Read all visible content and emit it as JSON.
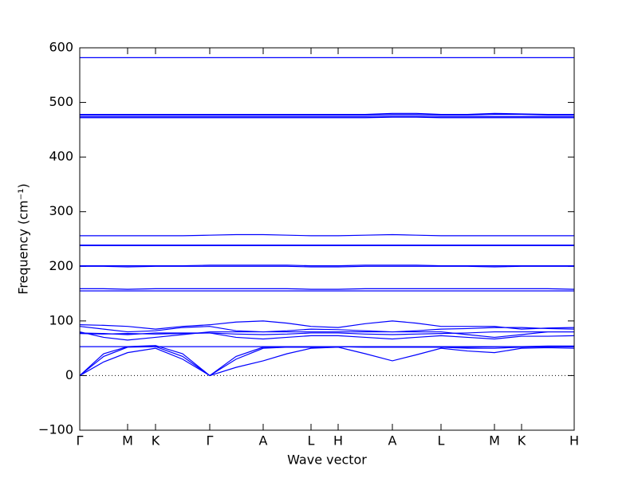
{
  "chart_data": {
    "type": "line",
    "xlabel": "Wave vector",
    "ylabel": "Frequency (cm⁻¹)",
    "xlim": [
      0,
      620
    ],
    "ylim": [
      -100,
      600
    ],
    "xticks": [
      {
        "value": 0,
        "label": "Γ"
      },
      {
        "value": 60,
        "label": "M"
      },
      {
        "value": 95,
        "label": "K"
      },
      {
        "value": 163,
        "label": "Γ"
      },
      {
        "value": 230,
        "label": "A"
      },
      {
        "value": 290,
        "label": "L"
      },
      {
        "value": 324,
        "label": "H"
      },
      {
        "value": 392,
        "label": "A"
      },
      {
        "value": 453,
        "label": "L"
      },
      {
        "value": 520,
        "label": "M"
      },
      {
        "value": 554,
        "label": "K"
      },
      {
        "value": 620,
        "label": "H"
      }
    ],
    "yticks": [
      {
        "value": -100,
        "label": "−100"
      },
      0,
      100,
      200,
      300,
      400,
      500,
      600
    ],
    "zero_line": true,
    "x": [
      0,
      30,
      60,
      95,
      129,
      163,
      196,
      230,
      260,
      290,
      324,
      358,
      392,
      422,
      453,
      486,
      520,
      554,
      587,
      620
    ],
    "series": [
      {
        "color": "#0000ff",
        "values": [
          0,
          25,
          42,
          50,
          30,
          0,
          15,
          27,
          40,
          50,
          52,
          40,
          27,
          38,
          50,
          45,
          42,
          50,
          51,
          50
        ]
      },
      {
        "color": "#0000ff",
        "values": [
          0,
          35,
          52,
          53,
          35,
          0,
          30,
          50,
          52,
          52,
          53,
          52,
          52,
          52,
          52,
          50,
          50,
          52,
          53,
          53
        ]
      },
      {
        "color": "#0000ff",
        "values": [
          0,
          40,
          53,
          55,
          40,
          0,
          35,
          52,
          52,
          52,
          53,
          52,
          52,
          52,
          52,
          52,
          53,
          53,
          54,
          54
        ]
      },
      {
        "color": "#0000ff",
        "values": [
          53,
          53,
          53,
          53,
          53,
          53,
          53,
          53,
          53,
          53,
          53,
          53,
          53,
          53,
          53,
          53,
          53,
          53,
          53,
          53
        ]
      },
      {
        "color": "#0000ff",
        "values": [
          93,
          92,
          90,
          85,
          90,
          93,
          98,
          100,
          96,
          90,
          88,
          95,
          100,
          96,
          90,
          90,
          90,
          85,
          87,
          88
        ]
      },
      {
        "color": "#0000ff",
        "values": [
          90,
          85,
          80,
          82,
          88,
          90,
          82,
          80,
          82,
          85,
          84,
          82,
          80,
          82,
          85,
          86,
          88,
          88,
          86,
          85
        ]
      },
      {
        "color": "#0000ff",
        "values": [
          80,
          70,
          65,
          70,
          75,
          80,
          80,
          80,
          80,
          80,
          80,
          80,
          80,
          80,
          80,
          75,
          70,
          75,
          80,
          80
        ]
      },
      {
        "color": "#0000ff",
        "values": [
          78,
          77,
          75,
          78,
          78,
          78,
          70,
          67,
          70,
          73,
          73,
          70,
          67,
          70,
          73,
          70,
          67,
          72,
          72,
          73
        ]
      },
      {
        "color": "#0000ff",
        "values": [
          77,
          76,
          77,
          76,
          77,
          78,
          76,
          75,
          76,
          78,
          78,
          76,
          75,
          76,
          77,
          78,
          80,
          80,
          80,
          80
        ]
      },
      {
        "color": "#0000ff",
        "values": [
          155,
          155,
          155,
          155,
          155,
          155,
          155,
          155,
          155,
          155,
          155,
          155,
          155,
          155,
          155,
          155,
          155,
          155,
          155,
          155
        ]
      },
      {
        "color": "#0000ff",
        "values": [
          159,
          159,
          158,
          159,
          159,
          159,
          159,
          159,
          159,
          158,
          158,
          159,
          159,
          159,
          159,
          159,
          159,
          159,
          159,
          158
        ]
      },
      {
        "color": "#0000ff",
        "values": [
          200,
          200,
          199,
          200,
          200,
          200,
          200,
          200,
          200,
          199,
          199,
          200,
          200,
          200,
          200,
          200,
          199,
          200,
          200,
          200
        ]
      },
      {
        "color": "#0000ff",
        "values": [
          201,
          201,
          201,
          201,
          201,
          202,
          202,
          202,
          202,
          201,
          201,
          202,
          202,
          202,
          201,
          201,
          201,
          201,
          201,
          201
        ]
      },
      {
        "color": "#0000ff",
        "values": [
          238,
          238,
          238,
          238,
          238,
          238,
          238,
          238,
          238,
          238,
          238,
          238,
          238,
          238,
          238,
          238,
          238,
          238,
          238,
          238
        ]
      },
      {
        "color": "#0000ff",
        "values": [
          239,
          239,
          239,
          239,
          239,
          239,
          239,
          239,
          239,
          239,
          239,
          239,
          239,
          239,
          239,
          239,
          239,
          239,
          239,
          239
        ]
      },
      {
        "color": "#0000ff",
        "values": [
          256,
          256,
          256,
          256,
          256,
          257,
          258,
          258,
          257,
          256,
          256,
          257,
          258,
          257,
          256,
          256,
          256,
          256,
          256,
          256
        ]
      },
      {
        "color": "#0000ff",
        "values": [
          472,
          472,
          472,
          472,
          472,
          472,
          472,
          472,
          472,
          472,
          472,
          472,
          473,
          473,
          472,
          472,
          472,
          472,
          472,
          472
        ]
      },
      {
        "color": "#0000ff",
        "values": [
          474,
          474,
          474,
          474,
          474,
          474,
          474,
          474,
          474,
          474,
          474,
          474,
          475,
          475,
          474,
          474,
          474,
          474,
          474,
          474
        ]
      },
      {
        "color": "#0000ff",
        "values": [
          477,
          477,
          477,
          477,
          477,
          477,
          477,
          477,
          477,
          477,
          477,
          477,
          478,
          478,
          477,
          477,
          478,
          478,
          477,
          477
        ]
      },
      {
        "color": "#0000ff",
        "values": [
          478,
          478,
          478,
          478,
          478,
          478,
          478,
          478,
          478,
          478,
          478,
          478,
          480,
          480,
          478,
          478,
          480,
          479,
          478,
          478
        ]
      },
      {
        "color": "#0000ff",
        "values": [
          582,
          582,
          582,
          582,
          582,
          582,
          582,
          582,
          582,
          582,
          582,
          582,
          582,
          582,
          582,
          582,
          582,
          582,
          582,
          582
        ]
      }
    ]
  }
}
